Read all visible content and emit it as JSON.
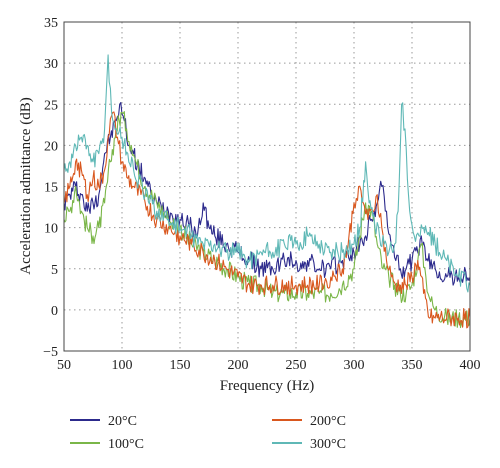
{
  "chart_data": {
    "type": "line",
    "title": "",
    "xlabel": "Frequency (Hz)",
    "ylabel": "Acceleration admittance (dB)",
    "xlim": [
      50,
      400
    ],
    "ylim": [
      -5,
      35
    ],
    "xticks": [
      50,
      100,
      150,
      200,
      250,
      300,
      350,
      400
    ],
    "yticks": [
      -5,
      0,
      5,
      10,
      15,
      20,
      25,
      30,
      35
    ],
    "grid": true,
    "legend_position": "bottom",
    "series": [
      {
        "name": "20°C",
        "color": "#2c2a8c",
        "points": [
          [
            50,
            13
          ],
          [
            55,
            14
          ],
          [
            60,
            15
          ],
          [
            65,
            14
          ],
          [
            70,
            12
          ],
          [
            75,
            13
          ],
          [
            80,
            14
          ],
          [
            85,
            19
          ],
          [
            90,
            21
          ],
          [
            95,
            23
          ],
          [
            98,
            25
          ],
          [
            102,
            23
          ],
          [
            106,
            20
          ],
          [
            110,
            19
          ],
          [
            115,
            17
          ],
          [
            120,
            16
          ],
          [
            125,
            14
          ],
          [
            130,
            13
          ],
          [
            140,
            12
          ],
          [
            150,
            11
          ],
          [
            160,
            10
          ],
          [
            165,
            9
          ],
          [
            170,
            13
          ],
          [
            175,
            10
          ],
          [
            180,
            9
          ],
          [
            190,
            8
          ],
          [
            200,
            7
          ],
          [
            210,
            6
          ],
          [
            220,
            5
          ],
          [
            230,
            5
          ],
          [
            240,
            6
          ],
          [
            250,
            6
          ],
          [
            255,
            5
          ],
          [
            260,
            6
          ],
          [
            270,
            5
          ],
          [
            280,
            5
          ],
          [
            290,
            6
          ],
          [
            300,
            7
          ],
          [
            305,
            8
          ],
          [
            310,
            9
          ],
          [
            315,
            11
          ],
          [
            320,
            13
          ],
          [
            324,
            15
          ],
          [
            328,
            12
          ],
          [
            332,
            8
          ],
          [
            336,
            6
          ],
          [
            340,
            5
          ],
          [
            345,
            5
          ],
          [
            350,
            6
          ],
          [
            355,
            7
          ],
          [
            358,
            9
          ],
          [
            362,
            6
          ],
          [
            370,
            5
          ],
          [
            380,
            4
          ],
          [
            390,
            4
          ],
          [
            400,
            4
          ]
        ]
      },
      {
        "name": "100°C",
        "color": "#7ab648",
        "points": [
          [
            50,
            11
          ],
          [
            55,
            12
          ],
          [
            60,
            15
          ],
          [
            65,
            12
          ],
          [
            70,
            10
          ],
          [
            75,
            9
          ],
          [
            80,
            10
          ],
          [
            85,
            13
          ],
          [
            90,
            18
          ],
          [
            95,
            22
          ],
          [
            100,
            24
          ],
          [
            104,
            22
          ],
          [
            108,
            20
          ],
          [
            112,
            18
          ],
          [
            120,
            15
          ],
          [
            130,
            13
          ],
          [
            140,
            11
          ],
          [
            150,
            10
          ],
          [
            160,
            8
          ],
          [
            170,
            7
          ],
          [
            180,
            6
          ],
          [
            190,
            5
          ],
          [
            200,
            4
          ],
          [
            210,
            3
          ],
          [
            220,
            3
          ],
          [
            230,
            2
          ],
          [
            240,
            2
          ],
          [
            250,
            2
          ],
          [
            260,
            2
          ],
          [
            270,
            2
          ],
          [
            280,
            2
          ],
          [
            290,
            3
          ],
          [
            300,
            5
          ],
          [
            305,
            9
          ],
          [
            310,
            13
          ],
          [
            315,
            12
          ],
          [
            320,
            8
          ],
          [
            325,
            5
          ],
          [
            330,
            4
          ],
          [
            335,
            3
          ],
          [
            340,
            2
          ],
          [
            345,
            2
          ],
          [
            350,
            3
          ],
          [
            355,
            6
          ],
          [
            358,
            8
          ],
          [
            362,
            4
          ],
          [
            366,
            1
          ],
          [
            370,
            0
          ],
          [
            380,
            -1
          ],
          [
            390,
            -1
          ],
          [
            400,
            -1
          ]
        ]
      },
      {
        "name": "200°C",
        "color": "#d9571e",
        "points": [
          [
            50,
            13
          ],
          [
            55,
            15
          ],
          [
            60,
            18
          ],
          [
            65,
            17
          ],
          [
            70,
            14
          ],
          [
            75,
            16
          ],
          [
            80,
            15
          ],
          [
            85,
            17
          ],
          [
            88,
            21
          ],
          [
            92,
            24
          ],
          [
            96,
            21
          ],
          [
            100,
            18
          ],
          [
            105,
            16
          ],
          [
            110,
            15
          ],
          [
            120,
            13
          ],
          [
            130,
            11
          ],
          [
            140,
            10
          ],
          [
            150,
            9
          ],
          [
            160,
            8
          ],
          [
            170,
            7
          ],
          [
            180,
            6
          ],
          [
            190,
            5
          ],
          [
            200,
            4
          ],
          [
            210,
            3
          ],
          [
            220,
            3
          ],
          [
            230,
            3
          ],
          [
            240,
            3
          ],
          [
            250,
            3
          ],
          [
            260,
            3
          ],
          [
            270,
            3
          ],
          [
            280,
            4
          ],
          [
            290,
            5
          ],
          [
            295,
            8
          ],
          [
            300,
            13
          ],
          [
            304,
            15
          ],
          [
            308,
            13
          ],
          [
            312,
            11
          ],
          [
            316,
            12
          ],
          [
            320,
            14
          ],
          [
            324,
            10
          ],
          [
            328,
            6
          ],
          [
            332,
            4
          ],
          [
            336,
            3
          ],
          [
            340,
            3
          ],
          [
            345,
            3
          ],
          [
            350,
            4
          ],
          [
            355,
            6
          ],
          [
            360,
            2
          ],
          [
            365,
            -1
          ],
          [
            370,
            -1
          ],
          [
            380,
            -1
          ],
          [
            390,
            -1
          ],
          [
            400,
            -1
          ]
        ]
      },
      {
        "name": "300°C",
        "color": "#5fb8b6",
        "points": [
          [
            50,
            17
          ],
          [
            55,
            18
          ],
          [
            60,
            20
          ],
          [
            65,
            21
          ],
          [
            70,
            20
          ],
          [
            75,
            18
          ],
          [
            80,
            19
          ],
          [
            85,
            22
          ],
          [
            88,
            31
          ],
          [
            91,
            24
          ],
          [
            95,
            22
          ],
          [
            100,
            21
          ],
          [
            105,
            19
          ],
          [
            110,
            17
          ],
          [
            120,
            14
          ],
          [
            130,
            12
          ],
          [
            140,
            11
          ],
          [
            150,
            10
          ],
          [
            160,
            9
          ],
          [
            170,
            8
          ],
          [
            180,
            8
          ],
          [
            190,
            7
          ],
          [
            200,
            7
          ],
          [
            210,
            6
          ],
          [
            220,
            7
          ],
          [
            230,
            7
          ],
          [
            240,
            8
          ],
          [
            250,
            8
          ],
          [
            260,
            9
          ],
          [
            270,
            8
          ],
          [
            280,
            7
          ],
          [
            290,
            7
          ],
          [
            300,
            8
          ],
          [
            305,
            10
          ],
          [
            310,
            18
          ],
          [
            313,
            13
          ],
          [
            318,
            10
          ],
          [
            322,
            9
          ],
          [
            326,
            8
          ],
          [
            330,
            7
          ],
          [
            335,
            8
          ],
          [
            338,
            12
          ],
          [
            341,
            25
          ],
          [
            344,
            22
          ],
          [
            348,
            12
          ],
          [
            352,
            9
          ],
          [
            356,
            9
          ],
          [
            360,
            10
          ],
          [
            365,
            9
          ],
          [
            370,
            8
          ],
          [
            380,
            6
          ],
          [
            390,
            4
          ],
          [
            400,
            3
          ]
        ]
      }
    ]
  }
}
